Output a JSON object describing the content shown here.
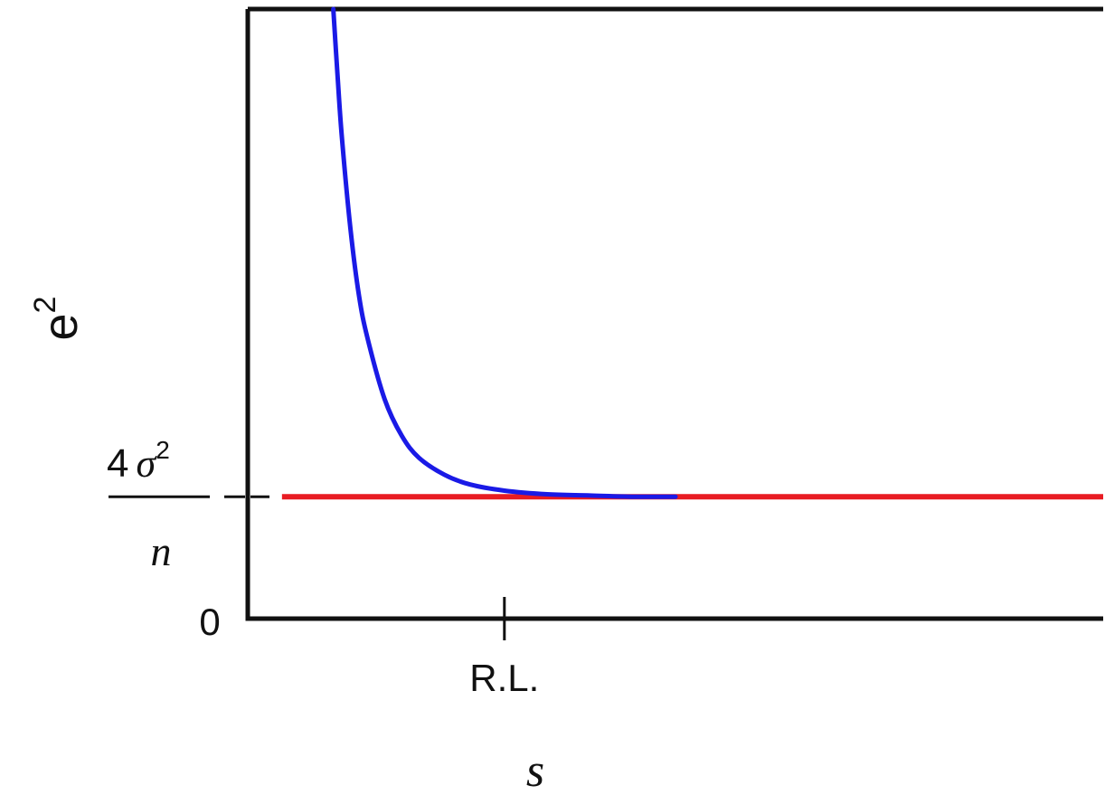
{
  "chart_data": {
    "type": "line",
    "title": "",
    "xlabel": "s",
    "ylabel": {
      "base": "e",
      "superscript": "2"
    },
    "x_ticks": [
      {
        "label": "R.L.",
        "value": 3
      }
    ],
    "y_ticks": [
      {
        "label": "0",
        "value": 0
      },
      {
        "label": "4σ²/n",
        "value": 1,
        "numerator": {
          "coefficient": "4",
          "symbol": "σ",
          "superscript": "2"
        },
        "denominator": "n"
      }
    ],
    "xlim": [
      0,
      10
    ],
    "ylim": [
      0,
      5
    ],
    "grid": false,
    "series": [
      {
        "color": "#1a1ae6",
        "x": [
          1.0,
          1.05,
          1.1,
          1.2,
          1.3,
          1.4,
          1.6,
          1.8,
          2.0,
          2.3,
          2.6,
          3.0,
          3.5,
          4.0,
          4.5,
          5.0
        ],
        "y": [
          5.0,
          4.45,
          3.95,
          3.2,
          2.65,
          2.3,
          1.8,
          1.5,
          1.32,
          1.18,
          1.1,
          1.05,
          1.02,
          1.01,
          1.0,
          1.0
        ]
      },
      {
        "color": "#e81c23",
        "x": [
          0.4,
          10.0
        ],
        "y": [
          1.0,
          1.0
        ]
      }
    ],
    "annotations": [
      {
        "type": "dashed-reference",
        "value": 1
      }
    ]
  },
  "colors": {
    "axis": "#111111",
    "blue_curve": "#1a1ae6",
    "red_line": "#e81c23"
  }
}
